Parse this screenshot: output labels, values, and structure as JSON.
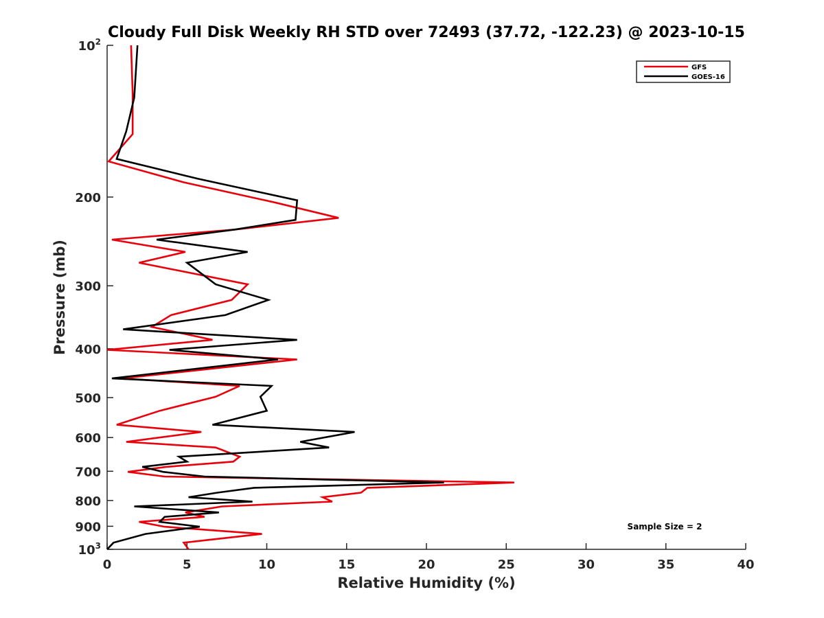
{
  "chart_data": {
    "type": "line",
    "title": "Cloudy Full Disk Weekly RH STD over 72493 (37.72, -122.23) @ 2023-10-15",
    "xlabel": "Relative Humidity (%)",
    "ylabel": "Pressure (mb)",
    "xlim": [
      0,
      40
    ],
    "ylim": [
      100,
      1000
    ],
    "y_scale": "log",
    "y_reversed": true,
    "x_ticks": [
      "0",
      "5",
      "10",
      "15",
      "20",
      "25",
      "30",
      "35",
      "40"
    ],
    "y_ticks": [
      {
        "value": 100,
        "base": "10",
        "sup": "2"
      },
      {
        "value": 200,
        "base": "200",
        "sup": ""
      },
      {
        "value": 300,
        "base": "300",
        "sup": ""
      },
      {
        "value": 400,
        "base": "400",
        "sup": ""
      },
      {
        "value": 500,
        "base": "500",
        "sup": ""
      },
      {
        "value": 600,
        "base": "600",
        "sup": ""
      },
      {
        "value": 700,
        "base": "700",
        "sup": ""
      },
      {
        "value": 800,
        "base": "800",
        "sup": ""
      },
      {
        "value": 900,
        "base": "900",
        "sup": ""
      },
      {
        "value": 1000,
        "base": "10",
        "sup": "3"
      }
    ],
    "grid": false,
    "legend_position": "top-right",
    "annotation": "Sample Size = 2",
    "series": [
      {
        "name": "GFS",
        "color": "#e8000b",
        "points": [
          [
            1.5,
            100
          ],
          [
            1.6,
            125
          ],
          [
            1.6,
            150
          ],
          [
            0.1,
            170
          ],
          [
            4.8,
            187
          ],
          [
            10.5,
            205
          ],
          [
            14.5,
            220
          ],
          [
            8.0,
            232
          ],
          [
            0.3,
            243
          ],
          [
            4.9,
            257
          ],
          [
            2.0,
            270
          ],
          [
            8.8,
            298
          ],
          [
            7.8,
            320
          ],
          [
            4.0,
            343
          ],
          [
            2.8,
            362
          ],
          [
            6.6,
            384
          ],
          [
            0.0,
            402
          ],
          [
            11.9,
            420
          ],
          [
            0.9,
            458
          ],
          [
            8.3,
            474
          ],
          [
            6.8,
            498
          ],
          [
            3.3,
            531
          ],
          [
            0.6,
            566
          ],
          [
            5.9,
            585
          ],
          [
            1.2,
            612
          ],
          [
            6.8,
            628
          ],
          [
            8.3,
            655
          ],
          [
            7.9,
            670
          ],
          [
            3.7,
            686
          ],
          [
            1.3,
            702
          ],
          [
            3.6,
            717
          ],
          [
            25.5,
            737
          ],
          [
            16.3,
            755
          ],
          [
            15.9,
            772
          ],
          [
            13.5,
            788
          ],
          [
            14.1,
            804
          ],
          [
            7.2,
            822
          ],
          [
            4.9,
            845
          ],
          [
            6.1,
            862
          ],
          [
            2.0,
            882
          ],
          [
            3.6,
            902
          ],
          [
            9.7,
            932
          ],
          [
            4.8,
            970
          ],
          [
            5.1,
            1000
          ]
        ]
      },
      {
        "name": "GOES-16",
        "color": "#000000",
        "points": [
          [
            1.9,
            100
          ],
          [
            1.7,
            127
          ],
          [
            1.2,
            148
          ],
          [
            0.6,
            168
          ],
          [
            5.7,
            184
          ],
          [
            11.9,
            203
          ],
          [
            11.8,
            222
          ],
          [
            8.0,
            232
          ],
          [
            3.1,
            243
          ],
          [
            8.8,
            257
          ],
          [
            5.0,
            270
          ],
          [
            6.8,
            298
          ],
          [
            10.1,
            320
          ],
          [
            7.4,
            343
          ],
          [
            1.0,
            366
          ],
          [
            11.9,
            384
          ],
          [
            3.9,
            402
          ],
          [
            10.7,
            420
          ],
          [
            0.3,
            458
          ],
          [
            10.3,
            474
          ],
          [
            9.6,
            498
          ],
          [
            10.0,
            531
          ],
          [
            6.6,
            566
          ],
          [
            15.5,
            585
          ],
          [
            12.1,
            612
          ],
          [
            13.9,
            628
          ],
          [
            4.5,
            655
          ],
          [
            5.0,
            670
          ],
          [
            2.2,
            686
          ],
          [
            3.5,
            702
          ],
          [
            6.1,
            717
          ],
          [
            21.1,
            737
          ],
          [
            9.2,
            755
          ],
          [
            6.9,
            772
          ],
          [
            5.1,
            788
          ],
          [
            9.1,
            804
          ],
          [
            1.7,
            822
          ],
          [
            7.0,
            845
          ],
          [
            3.6,
            862
          ],
          [
            3.3,
            882
          ],
          [
            5.8,
            902
          ],
          [
            2.4,
            932
          ],
          [
            0.4,
            970
          ],
          [
            0.0,
            1000
          ]
        ]
      }
    ]
  }
}
